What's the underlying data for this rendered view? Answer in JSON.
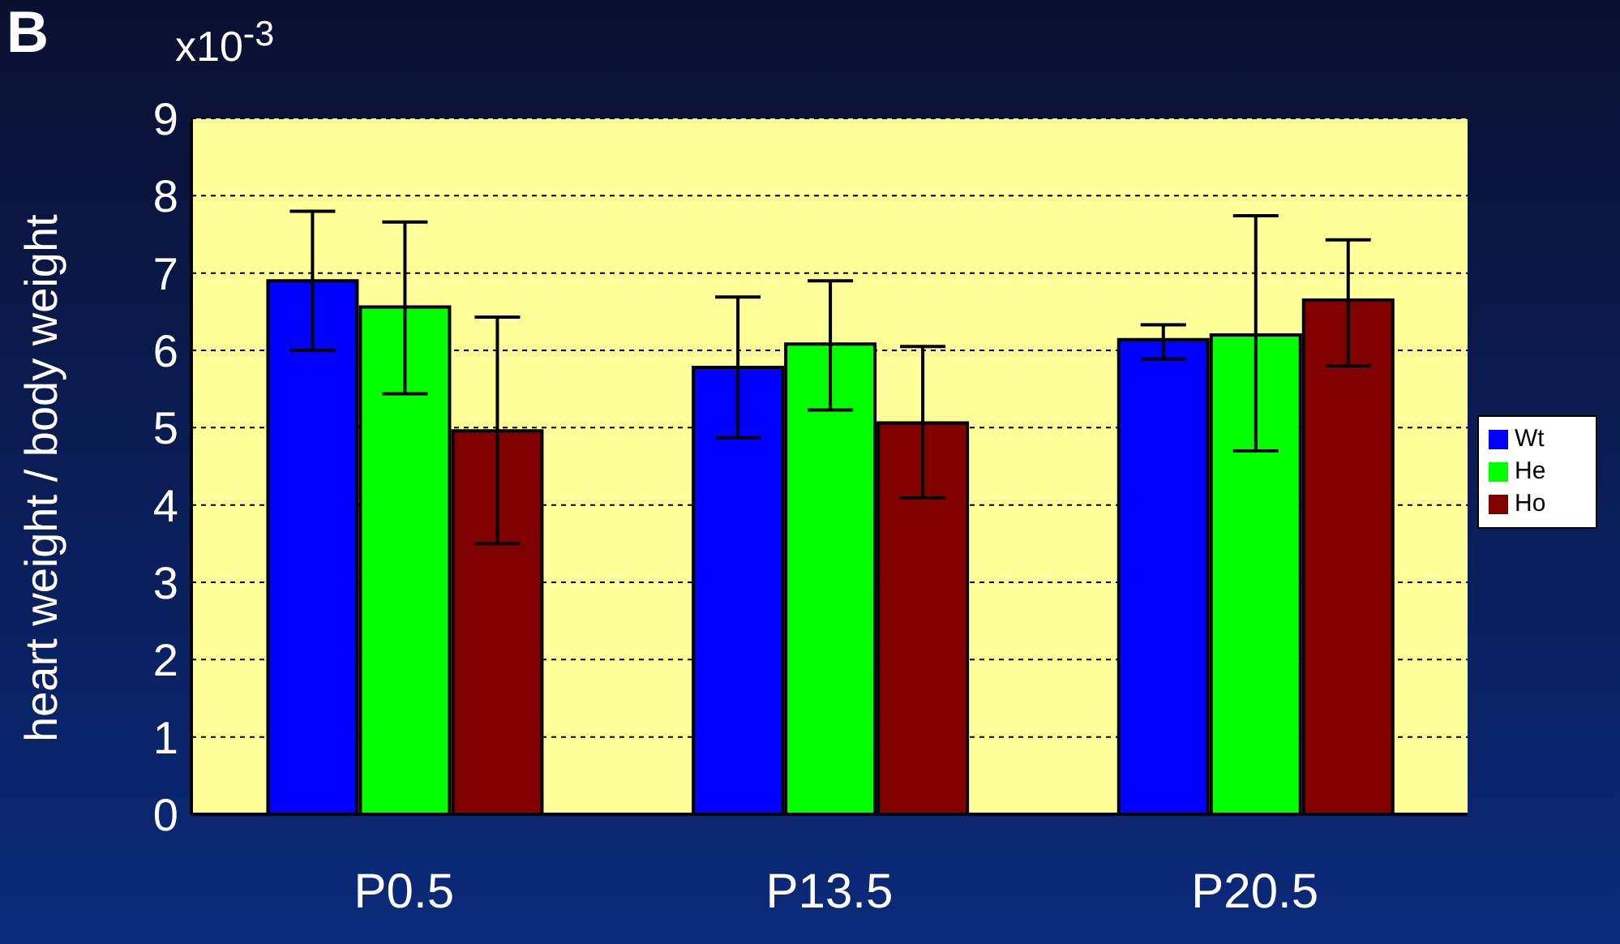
{
  "chart_data": {
    "type": "bar",
    "ylabel": "heart weight / body weight",
    "annotations": [
      "B",
      "x10$^{-3}$"
    ],
    "categories": [
      "P0.5",
      "P13.5",
      "P20.5"
    ],
    "series": [
      {
        "name": "Wt",
        "color": "#0000ff",
        "values": [
          6.9,
          5.78,
          6.14
        ],
        "errors": [
          [
            6.0,
            7.8
          ],
          [
            4.87,
            6.69
          ],
          [
            5.89,
            6.33
          ]
        ]
      },
      {
        "name": "He",
        "color": "#00ff00",
        "values": [
          6.56,
          6.08,
          6.2
        ],
        "errors": [
          [
            5.44,
            7.66
          ],
          [
            5.23,
            6.9
          ],
          [
            4.7,
            7.74
          ]
        ]
      },
      {
        "name": "Ho",
        "color": "#800000",
        "values": [
          4.96,
          5.06,
          6.65
        ],
        "errors": [
          [
            3.5,
            6.43
          ],
          [
            4.09,
            6.05
          ],
          [
            5.8,
            7.43
          ]
        ]
      }
    ],
    "ylim": [
      0,
      9
    ],
    "yticks": [
      0,
      1,
      2,
      3,
      4,
      5,
      6,
      7,
      8,
      9
    ],
    "grid": "y",
    "legend": "right"
  }
}
